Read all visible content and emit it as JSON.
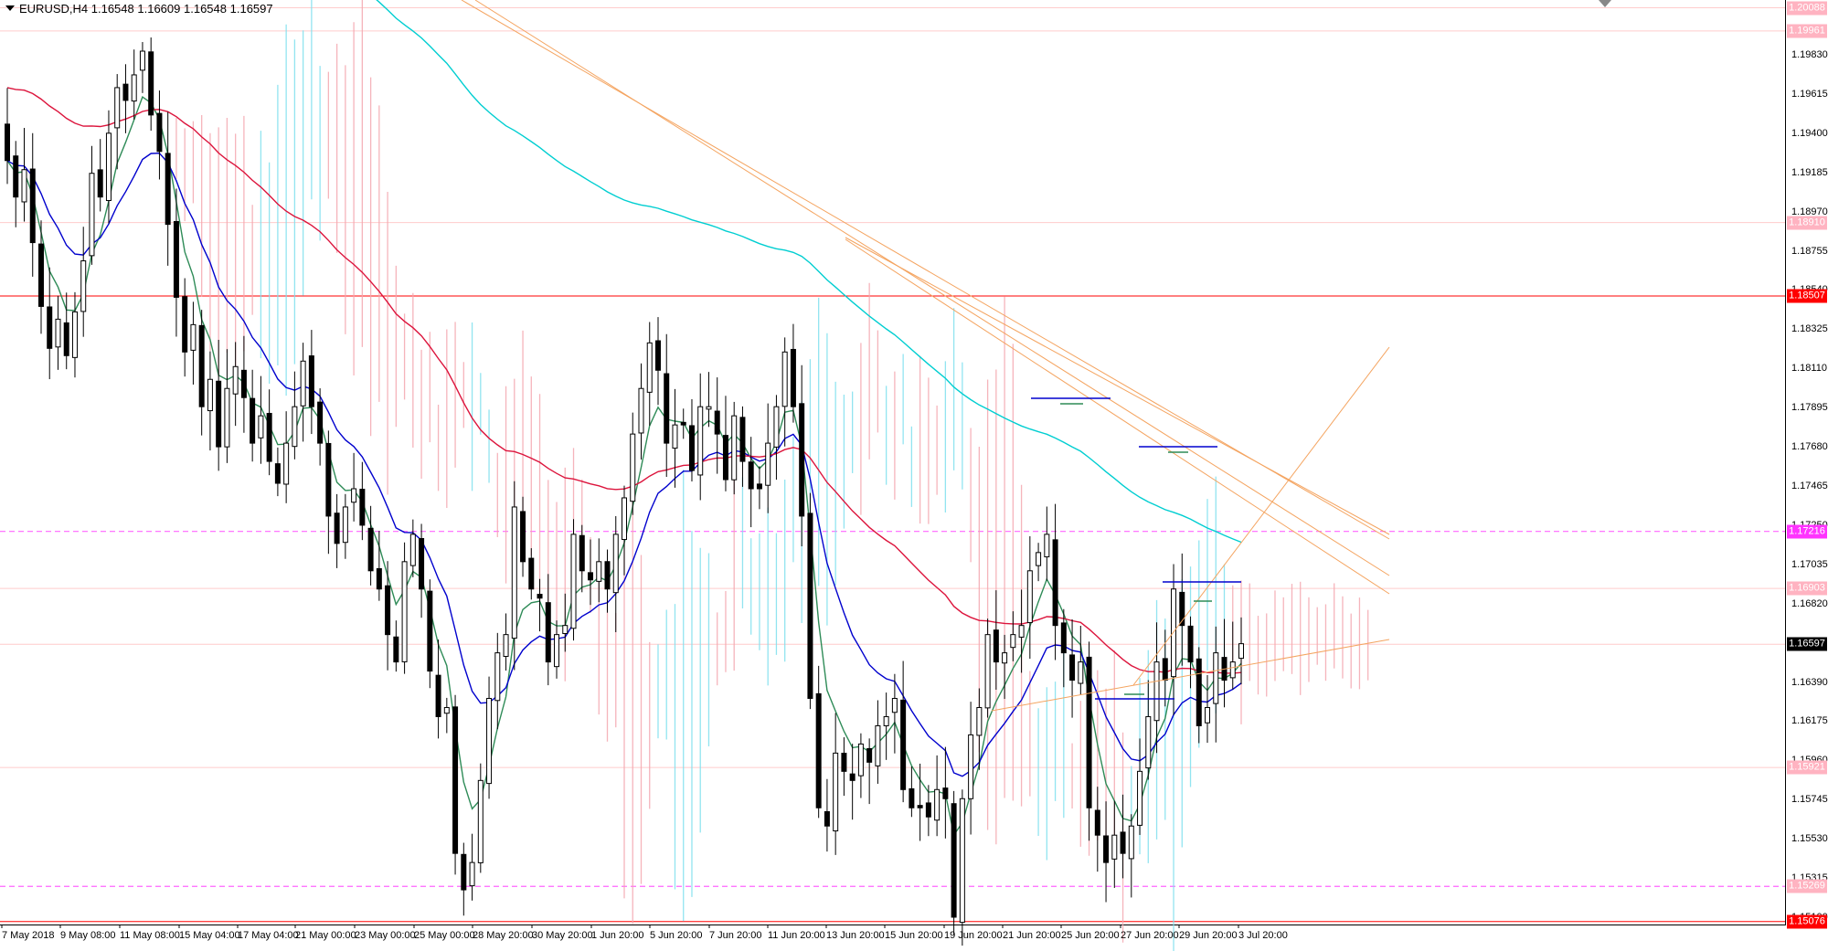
{
  "header": {
    "symbol": "EURUSD,H4",
    "open": "1.16548",
    "high": "1.16609",
    "low": "1.16548",
    "close": "1.16597"
  },
  "colors": {
    "bull_candle": "#000000",
    "bear_candle": "#000000",
    "ema_fast": "#2e8b57",
    "ema_mid": "#0000cd",
    "ema_slow": "#dc143c",
    "ema_long": "#00ced1",
    "cloud_bear": "#f4a7b0",
    "cloud_bull": "#7fe0ee",
    "trendline": "#f4a460",
    "hline_red": "#ff0000",
    "hline_magenta": "#ff66ff",
    "hline_pink": "#ffcccc",
    "tag_red": "#ff0000",
    "tag_magenta": "#ff33ff",
    "tag_pink": "#ffb3c1",
    "tag_current": "#000000"
  },
  "chart_data": {
    "type": "candlestick",
    "symbol": "EURUSD",
    "timeframe": "H4",
    "ylim": [
      1.15076,
      1.20088
    ],
    "y_ticks": [
      "1.19830",
      "1.19615",
      "1.19400",
      "1.19185",
      "1.18970",
      "1.18755",
      "1.18540",
      "1.18325",
      "1.18110",
      "1.17895",
      "1.17680",
      "1.17465",
      "1.17250",
      "1.17035",
      "1.16820",
      "1.16390",
      "1.16175",
      "1.15960",
      "1.15745",
      "1.15530",
      "1.15315",
      "1.15100"
    ],
    "x_ticks": [
      "7 May 2018",
      "9 May 08:00",
      "11 May 08:00",
      "15 May 04:00",
      "17 May 04:00",
      "21 May 00:00",
      "23 May 00:00",
      "25 May 00:00",
      "28 May 20:00",
      "30 May 20:00",
      "1 Jun 20:00",
      "5 Jun 20:00",
      "7 Jun 20:00",
      "11 Jun 20:00",
      "13 Jun 20:00",
      "15 Jun 20:00",
      "19 Jun 20:00",
      "21 Jun 20:00",
      "25 Jun 20:00",
      "27 Jun 20:00",
      "29 Jun 20:00",
      "3 Jul 20:00"
    ],
    "price_tags": [
      {
        "price": "1.20088",
        "kind": "pink"
      },
      {
        "price": "1.19961",
        "kind": "pink"
      },
      {
        "price": "1.18910",
        "kind": "pink"
      },
      {
        "price": "1.18507",
        "kind": "red"
      },
      {
        "price": "1.17216",
        "kind": "magenta"
      },
      {
        "price": "1.16903",
        "kind": "pink"
      },
      {
        "price": "1.16597",
        "kind": "current"
      },
      {
        "price": "1.15921",
        "kind": "pink"
      },
      {
        "price": "1.15269",
        "kind": "pink"
      },
      {
        "price": "1.15076",
        "kind": "red"
      }
    ],
    "horizontal_lines": [
      {
        "price": 1.20088,
        "style": "pink"
      },
      {
        "price": 1.19961,
        "style": "pink"
      },
      {
        "price": 1.1891,
        "style": "pink"
      },
      {
        "price": 1.18507,
        "style": "red"
      },
      {
        "price": 1.17216,
        "style": "magenta-dash"
      },
      {
        "price": 1.16903,
        "style": "pink"
      },
      {
        "price": 1.16597,
        "style": "pink"
      },
      {
        "price": 1.15921,
        "style": "pink"
      },
      {
        "price": 1.15269,
        "style": "magenta-dash"
      },
      {
        "price": 1.15076,
        "style": "red"
      }
    ],
    "closes": [
      1.1925,
      1.1905,
      1.192,
      1.188,
      1.1845,
      1.1822,
      1.1838,
      1.1818,
      1.1842,
      1.187,
      1.1918,
      1.1905,
      1.194,
      1.1965,
      1.1958,
      1.1972,
      1.1985,
      1.195,
      1.193,
      1.189,
      1.185,
      1.182,
      1.1835,
      1.179,
      1.1805,
      1.1768,
      1.18,
      1.1812,
      1.1795,
      1.177,
      1.1785,
      1.176,
      1.1748,
      1.177,
      1.179,
      1.1815,
      1.179,
      1.177,
      1.173,
      1.1715,
      1.1735,
      1.1745,
      1.1725,
      1.17,
      1.169,
      1.1665,
      1.165,
      1.1705,
      1.172,
      1.169,
      1.1645,
      1.162,
      1.1625,
      1.1545,
      1.1525,
      1.154,
      1.1585,
      1.163,
      1.1655,
      1.1665,
      1.1735,
      1.1705,
      1.169,
      1.1685,
      1.165,
      1.1665,
      1.167,
      1.172,
      1.17,
      1.1695,
      1.1705,
      1.169,
      1.172,
      1.174,
      1.1775,
      1.18,
      1.1825,
      1.181,
      1.177,
      1.178,
      1.178,
      1.1755,
      1.179,
      1.179,
      1.1775,
      1.175,
      1.1785,
      1.176,
      1.1745,
      1.1745,
      1.177,
      1.179,
      1.182,
      1.179,
      1.173,
      1.163,
      1.157,
      1.156,
      1.16,
      1.159,
      1.1585,
      1.1605,
      1.1595,
      1.1615,
      1.162,
      1.163,
      1.158,
      1.157,
      1.157,
      1.1565,
      1.158,
      1.1575,
      1.151,
      1.1575,
      1.161,
      1.1625,
      1.1665,
      1.165,
      1.1655,
      1.1665,
      1.167,
      1.17,
      1.171,
      1.172,
      1.167,
      1.1655,
      1.164,
      1.165,
      1.157,
      1.1555,
      1.154,
      1.1555,
      1.1545,
      1.156,
      1.159,
      1.162,
      1.165,
      1.164,
      1.169,
      1.167,
      1.165,
      1.1615,
      1.1625,
      1.1655,
      1.164,
      1.165,
      1.166
    ],
    "series": [
      {
        "indicator": "ema-fast",
        "color": "#2e8b57"
      },
      {
        "indicator": "ema-mid",
        "color": "#0000cd"
      },
      {
        "indicator": "ema-slow",
        "color": "#dc143c"
      },
      {
        "indicator": "ema-long",
        "color": "#00ced1"
      }
    ]
  }
}
